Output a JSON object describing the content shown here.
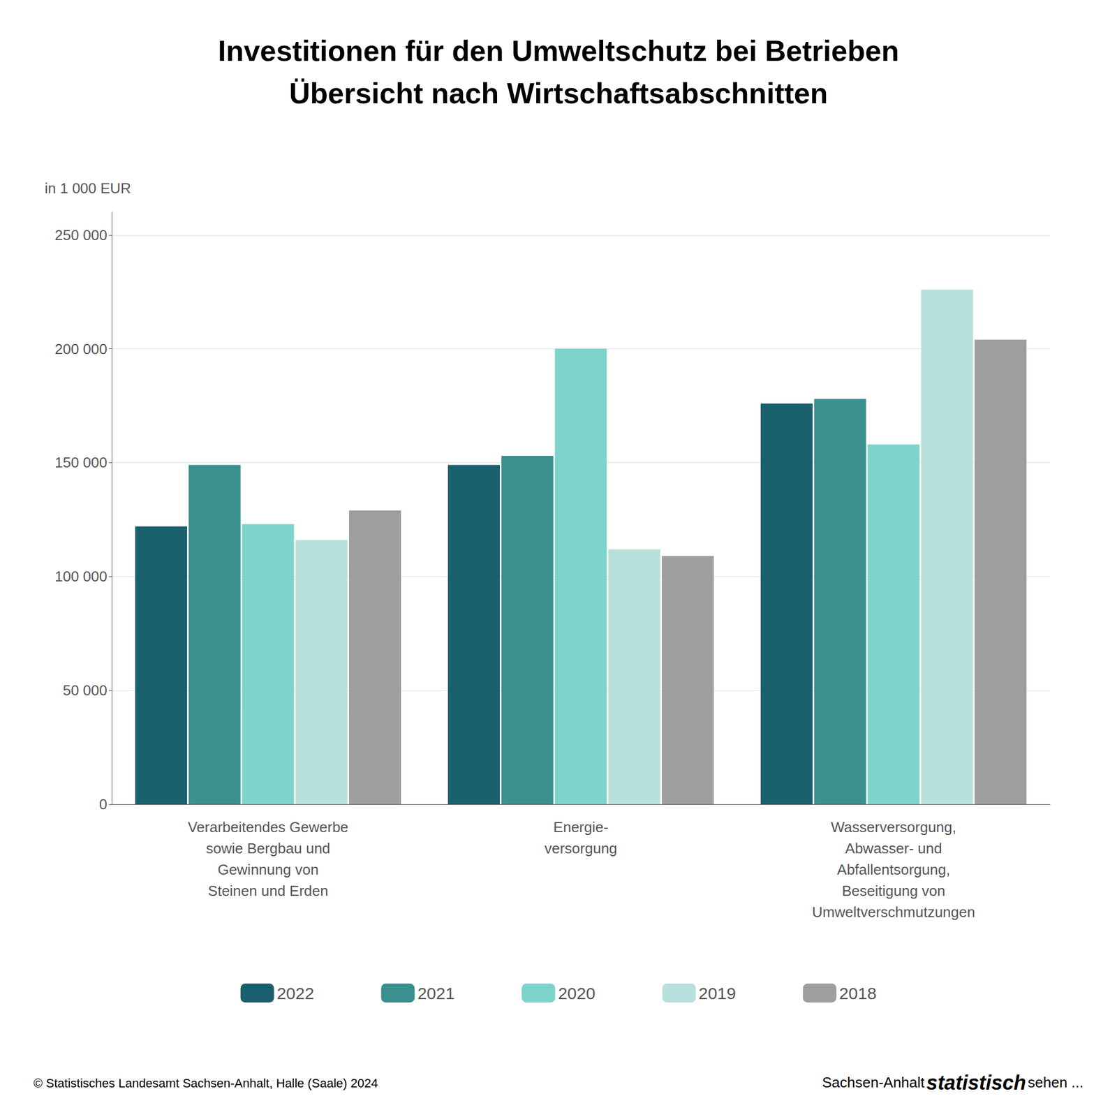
{
  "chart_data": {
    "type": "bar",
    "title": "Investitionen für den Umweltschutz bei Betrieben",
    "subtitle": "Übersicht nach Wirtschaftsabschnitten",
    "ylabel": "in 1 000 EUR",
    "categories": [
      "Verarbeitendes Gewerbe\nsowie Bergbau und\nGewinnung von\nSteinen und Erden",
      "Energie-\nversorgung",
      "Wasserversorgung,\nAbwasser- und\nAbfallentsorgung,\nBeseitigung von\nUmweltverschmutzungen"
    ],
    "series": [
      {
        "name": "2022",
        "color": "#1a5f6e",
        "values": [
          122000,
          149000,
          176000
        ]
      },
      {
        "name": "2021",
        "color": "#3a8f8f",
        "values": [
          149000,
          153000,
          178000
        ]
      },
      {
        "name": "2020",
        "color": "#7dd4cc",
        "values": [
          123000,
          200000,
          158000
        ]
      },
      {
        "name": "2019",
        "color": "#b8e0dc",
        "values": [
          116000,
          112000,
          226000
        ]
      },
      {
        "name": "2018",
        "color": "#9e9e9e",
        "values": [
          129000,
          109000,
          204000
        ]
      }
    ],
    "ylim": [
      0,
      260000
    ],
    "yticks": [
      0,
      {
        "value": 50000,
        "label": "50 000"
      },
      {
        "value": 100000,
        "label": "100 000"
      },
      {
        "value": 150000,
        "label": "150 000"
      },
      {
        "value": 200000,
        "label": "200 000"
      },
      {
        "value": 250000,
        "label": "250 000"
      }
    ],
    "grid": true,
    "legend": "bottom",
    "annotations": [
      "© Statistisches Landesamt Sachsen-Anhalt, Halle (Saale) 2024",
      "Sachsen-Anhalt",
      "statistisch",
      "sehen ..."
    ]
  }
}
